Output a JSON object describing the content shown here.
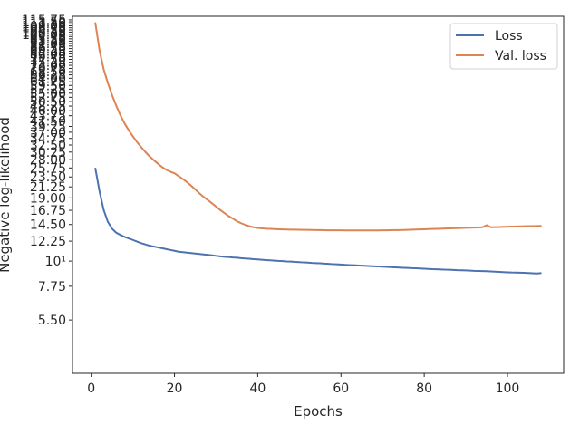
{
  "chart_data": {
    "type": "line",
    "title": "",
    "xlabel": "Epochs",
    "ylabel": "Negative log-likelihood",
    "xlim": [
      -4.5,
      113.5
    ],
    "ylim": [
      3.2,
      120
    ],
    "y_scale": "log",
    "grid": false,
    "legend_position": "top-right",
    "x_ticks": [
      0,
      20,
      40,
      60,
      80,
      100
    ],
    "y_tick_labels": [
      {
        "value": 5.5,
        "label": "5.50"
      },
      {
        "value": 7.75,
        "label": "7.75"
      },
      {
        "value": 10,
        "label": "10¹"
      },
      {
        "value": 12.25,
        "label": "12.25"
      },
      {
        "value": 14.5,
        "label": "14.50"
      },
      {
        "value": 16.75,
        "label": "16.75"
      },
      {
        "value": 19,
        "label": "19.00"
      },
      {
        "value": 21.25,
        "label": "21.25"
      },
      {
        "value": 23.5,
        "label": "23.50"
      },
      {
        "value": 25.75,
        "label": "25.75"
      },
      {
        "value": 28,
        "label": "28.00"
      },
      {
        "value": 30.25,
        "label": "30.25"
      },
      {
        "value": 32.5,
        "label": "32.50"
      },
      {
        "value": 34.75,
        "label": "34.75"
      },
      {
        "value": 37,
        "label": "37.00"
      },
      {
        "value": 39.25,
        "label": "39.25"
      },
      {
        "value": 41.5,
        "label": "41.50"
      },
      {
        "value": 43.75,
        "label": "43.75"
      },
      {
        "value": 46,
        "label": "46.00"
      },
      {
        "value": 48.25,
        "label": "48.25"
      },
      {
        "value": 50.5,
        "label": "50.50"
      },
      {
        "value": 52.75,
        "label": "52.75"
      },
      {
        "value": 55,
        "label": "55.00"
      },
      {
        "value": 57.25,
        "label": "57.25"
      },
      {
        "value": 59.5,
        "label": "59.50"
      },
      {
        "value": 61.75,
        "label": "61.75"
      },
      {
        "value": 64,
        "label": "64.00"
      },
      {
        "value": 66.25,
        "label": "66.25"
      },
      {
        "value": 68.5,
        "label": "68.50"
      },
      {
        "value": 70.75,
        "label": "70.75"
      },
      {
        "value": 73,
        "label": "73.00"
      },
      {
        "value": 75.25,
        "label": "75.25"
      },
      {
        "value": 77.5,
        "label": "77.50"
      },
      {
        "value": 79.75,
        "label": "79.75"
      },
      {
        "value": 82,
        "label": "82.00"
      },
      {
        "value": 84.25,
        "label": "84.25"
      },
      {
        "value": 86.5,
        "label": "86.50"
      },
      {
        "value": 88.75,
        "label": "88.75"
      },
      {
        "value": 91,
        "label": "91.00"
      },
      {
        "value": 93.25,
        "label": "93.25"
      },
      {
        "value": 95.5,
        "label": "95.50"
      },
      {
        "value": 97.75,
        "label": "97.75"
      },
      {
        "value": 100,
        "label": "100.00"
      },
      {
        "value": 102.25,
        "label": "102.25"
      },
      {
        "value": 104.5,
        "label": "104.50"
      },
      {
        "value": 106.75,
        "label": "106.75"
      },
      {
        "value": 109,
        "label": "109.00"
      },
      {
        "value": 111.25,
        "label": "111.25"
      },
      {
        "value": 113.5,
        "label": "113.50"
      },
      {
        "value": 115.75,
        "label": "115.75"
      }
    ],
    "x": [
      1,
      2,
      3,
      4,
      5,
      6,
      7,
      8,
      9,
      10,
      11,
      12,
      13,
      14,
      15,
      16,
      17,
      18,
      19,
      20,
      21,
      22,
      23,
      24,
      25,
      26,
      27,
      28,
      29,
      30,
      31,
      32,
      33,
      34,
      35,
      36,
      37,
      38,
      39,
      40,
      41,
      42,
      43,
      44,
      45,
      46,
      47,
      48,
      49,
      50,
      51,
      52,
      53,
      54,
      55,
      56,
      57,
      58,
      59,
      60,
      61,
      62,
      63,
      64,
      65,
      66,
      67,
      68,
      69,
      70,
      71,
      72,
      73,
      74,
      75,
      76,
      77,
      78,
      79,
      80,
      81,
      82,
      83,
      84,
      85,
      86,
      87,
      88,
      89,
      90,
      91,
      92,
      93,
      94,
      95,
      96,
      97,
      98,
      99,
      100,
      101,
      102,
      103,
      104,
      105,
      106,
      107,
      108
    ],
    "series": [
      {
        "name": "Loss",
        "color": "#4c72b0",
        "values": [
          25.6,
          20.3,
          16.8,
          14.9,
          13.9,
          13.35,
          13.05,
          12.8,
          12.6,
          12.4,
          12.2,
          12.0,
          11.85,
          11.7,
          11.6,
          11.5,
          11.4,
          11.3,
          11.2,
          11.1,
          11.0,
          10.95,
          10.9,
          10.85,
          10.8,
          10.75,
          10.7,
          10.65,
          10.6,
          10.55,
          10.5,
          10.45,
          10.42,
          10.38,
          10.35,
          10.3,
          10.27,
          10.24,
          10.2,
          10.17,
          10.14,
          10.11,
          10.08,
          10.05,
          10.02,
          10.0,
          9.97,
          9.95,
          9.92,
          9.9,
          9.87,
          9.85,
          9.82,
          9.8,
          9.78,
          9.75,
          9.73,
          9.7,
          9.68,
          9.66,
          9.63,
          9.61,
          9.59,
          9.57,
          9.55,
          9.53,
          9.51,
          9.49,
          9.47,
          9.45,
          9.43,
          9.41,
          9.39,
          9.37,
          9.35,
          9.33,
          9.31,
          9.3,
          9.28,
          9.26,
          9.24,
          9.22,
          9.21,
          9.19,
          9.17,
          9.16,
          9.14,
          9.12,
          9.11,
          9.1,
          9.08,
          9.06,
          9.05,
          9.04,
          9.03,
          9.01,
          8.99,
          8.97,
          8.95,
          8.93,
          8.91,
          8.9,
          8.89,
          8.88,
          8.86,
          8.84,
          8.82,
          8.85
        ]
      },
      {
        "name": "Val. loss",
        "color": "#dd8452",
        "values": [
          112,
          85,
          70,
          61,
          54,
          48.5,
          44,
          40.5,
          37.8,
          35.5,
          33.5,
          31.8,
          30.3,
          29.0,
          27.9,
          26.9,
          26.0,
          25.3,
          24.8,
          24.4,
          23.7,
          23.0,
          22.3,
          21.5,
          20.7,
          19.9,
          19.2,
          18.6,
          18.0,
          17.4,
          16.8,
          16.3,
          15.8,
          15.4,
          15.0,
          14.7,
          14.45,
          14.25,
          14.1,
          14.0,
          13.95,
          13.9,
          13.88,
          13.85,
          13.82,
          13.8,
          13.78,
          13.77,
          13.76,
          13.75,
          13.74,
          13.73,
          13.72,
          13.71,
          13.7,
          13.69,
          13.68,
          13.68,
          13.67,
          13.67,
          13.66,
          13.66,
          13.65,
          13.65,
          13.65,
          13.65,
          13.65,
          13.66,
          13.66,
          13.67,
          13.68,
          13.69,
          13.7,
          13.71,
          13.72,
          13.74,
          13.76,
          13.78,
          13.8,
          13.82,
          13.84,
          13.86,
          13.88,
          13.9,
          13.92,
          13.94,
          13.96,
          13.98,
          14.0,
          14.02,
          14.04,
          14.06,
          14.08,
          14.1,
          14.4,
          14.1,
          14.12,
          14.14,
          14.16,
          14.18,
          14.2,
          14.22,
          14.24,
          14.25,
          14.26,
          14.27,
          14.28,
          14.3
        ]
      }
    ]
  }
}
